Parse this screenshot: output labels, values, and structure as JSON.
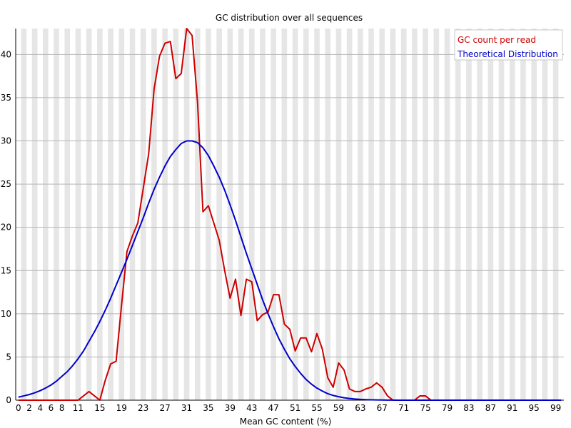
{
  "chart_data": {
    "type": "line",
    "title": "GC distribution over all sequences",
    "xlabel": "Mean GC content (%)",
    "ylabel": "",
    "xlim": [
      0,
      100
    ],
    "ylim": [
      0,
      43
    ],
    "grid": true,
    "legend_position": "top-right",
    "x_tick_labels": [
      "0",
      "2",
      "4",
      "6",
      "8",
      "11",
      "15",
      "19",
      "23",
      "27",
      "31",
      "35",
      "39",
      "43",
      "47",
      "51",
      "55",
      "59",
      "63",
      "67",
      "71",
      "75",
      "79",
      "83",
      "87",
      "91",
      "95",
      "99"
    ],
    "y_tick_labels": [
      "0",
      "5",
      "10",
      "15",
      "20",
      "25",
      "30",
      "35",
      "40"
    ],
    "x": [
      0,
      1,
      2,
      3,
      4,
      5,
      6,
      7,
      8,
      9,
      10,
      11,
      12,
      13,
      14,
      15,
      16,
      17,
      18,
      19,
      20,
      21,
      22,
      23,
      24,
      25,
      26,
      27,
      28,
      29,
      30,
      31,
      32,
      33,
      34,
      35,
      36,
      37,
      38,
      39,
      40,
      41,
      42,
      43,
      44,
      45,
      46,
      47,
      48,
      49,
      50,
      51,
      52,
      53,
      54,
      55,
      56,
      57,
      58,
      59,
      60,
      61,
      62,
      63,
      64,
      65,
      66,
      67,
      68,
      69,
      70,
      71,
      72,
      73,
      74,
      75,
      76,
      77,
      78,
      79,
      80,
      81,
      82,
      83,
      84,
      85,
      86,
      87,
      88,
      89,
      90,
      91,
      92,
      93,
      94,
      95,
      96,
      97,
      98,
      99,
      100
    ],
    "series": [
      {
        "name": "GC count per read",
        "color": "#cc0000",
        "values": [
          0,
          0,
          0,
          0,
          0,
          0,
          0,
          0,
          0,
          0,
          0,
          0,
          0.5,
          1,
          0.5,
          0,
          2.3,
          4.2,
          4.5,
          11,
          17.2,
          19,
          20.5,
          24.5,
          28.5,
          36,
          39.8,
          41.3,
          41.5,
          37.2,
          37.8,
          43,
          42.2,
          34.5,
          21.8,
          22.5,
          20.5,
          18.5,
          15,
          11.8,
          14,
          9.8,
          14,
          13.7,
          9.2,
          9.9,
          10.2,
          12.2,
          12.2,
          8.8,
          8.2,
          5.7,
          7.2,
          7.2,
          5.6,
          7.7,
          5.9,
          2.6,
          1.5,
          4.3,
          3.5,
          1.3,
          1,
          1,
          1.3,
          1.5,
          2,
          1.5,
          0.5,
          0,
          0,
          0,
          0,
          0,
          0.5,
          0.5,
          0,
          0,
          0,
          0,
          0,
          0,
          0,
          0,
          0,
          0,
          0,
          0,
          0,
          0,
          0,
          0,
          0,
          0,
          0,
          0,
          0,
          0,
          0,
          0,
          0
        ]
      },
      {
        "name": "Theoretical Distribution",
        "color": "#0000cc",
        "values": [
          0.35,
          0.5,
          0.65,
          0.85,
          1.1,
          1.4,
          1.75,
          2.2,
          2.75,
          3.3,
          4,
          4.8,
          5.7,
          6.8,
          7.9,
          9.1,
          10.4,
          11.8,
          13.3,
          14.8,
          16.3,
          17.9,
          19.5,
          21.1,
          22.8,
          24.4,
          25.8,
          27.1,
          28.2,
          29,
          29.7,
          30,
          30,
          29.8,
          29.2,
          28.3,
          27.1,
          25.8,
          24.3,
          22.6,
          20.8,
          18.9,
          17,
          15.2,
          13.4,
          11.6,
          10,
          8.5,
          7.1,
          5.9,
          4.8,
          3.9,
          3.1,
          2.4,
          1.85,
          1.4,
          1.05,
          0.75,
          0.55,
          0.4,
          0.28,
          0.2,
          0.13,
          0.09,
          0.06,
          0.04,
          0.03,
          0.02,
          0.01,
          0.01,
          0,
          0,
          0,
          0,
          0,
          0,
          0,
          0,
          0,
          0,
          0,
          0,
          0,
          0,
          0,
          0,
          0,
          0,
          0,
          0,
          0,
          0,
          0,
          0,
          0,
          0,
          0,
          0,
          0,
          0,
          0
        ]
      }
    ]
  }
}
